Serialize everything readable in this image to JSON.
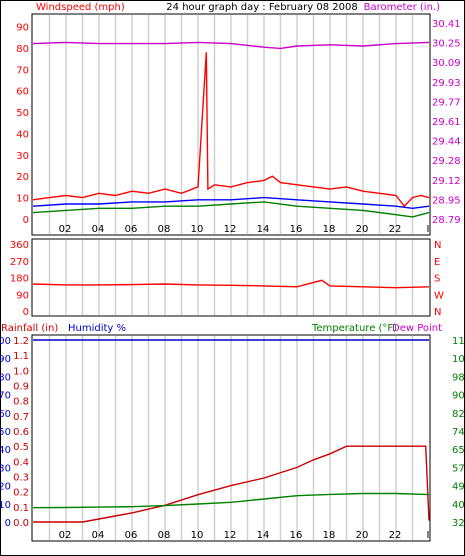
{
  "header": {
    "title": "24 hour graph day : February 08 2008",
    "left_label": "Windspeed (mph)",
    "right_label": "Barometer (in.)"
  },
  "colors": {
    "wind": "#ff0000",
    "avg_wind": "#0000ff",
    "gust_low": "#008000",
    "barometer": "#cc00cc",
    "grid": "#d0d0d0",
    "rain": "#cc0000",
    "humidity": "#0000cc",
    "temperature": "#008000"
  },
  "chart_data": [
    {
      "type": "line",
      "title": "24 hour graph day : February 08 2008",
      "ylabel": "Windspeed (mph)",
      "y2label": "Barometer (in.)",
      "x_ticks": [
        "02",
        "04",
        "06",
        "08",
        "10",
        "12",
        "14",
        "16",
        "18",
        "20",
        "22",
        "I"
      ],
      "y_ticks": [
        "0",
        "10",
        "20",
        "30",
        "40",
        "50",
        "60",
        "70",
        "80",
        "90"
      ],
      "y2_ticks": [
        "28.79",
        "28.95",
        "29.12",
        "29.28",
        "29.44",
        "29.61",
        "29.77",
        "29.93",
        "30.09",
        "30.25",
        "30.41"
      ],
      "ylim": [
        0,
        95
      ],
      "y2lim": [
        28.79,
        30.41
      ],
      "grid": true,
      "series": [
        {
          "key": "gust",
          "color": "#ff0000",
          "x": [
            0,
            1,
            2,
            3,
            4,
            5,
            6,
            7,
            8,
            9,
            10,
            10.5,
            10.6,
            11,
            12,
            13,
            14,
            14.5,
            15,
            16,
            17,
            18,
            19,
            20,
            21,
            22,
            22.5,
            23,
            23.5,
            24
          ],
          "y": [
            9,
            10,
            11,
            10,
            12,
            11,
            13,
            12,
            14,
            12,
            15,
            78,
            14,
            16,
            15,
            17,
            18,
            20,
            17,
            16,
            15,
            14,
            15,
            13,
            12,
            11,
            6,
            10,
            11,
            10
          ]
        },
        {
          "key": "average",
          "color": "#0000ff",
          "x": [
            0,
            2,
            4,
            6,
            8,
            10,
            12,
            14,
            16,
            18,
            20,
            22,
            23,
            24
          ],
          "y": [
            6,
            7,
            7,
            8,
            8,
            9,
            9,
            10,
            9,
            8,
            7,
            6,
            5,
            6
          ]
        },
        {
          "key": "low",
          "color": "#008000",
          "x": [
            0,
            2,
            4,
            6,
            8,
            10,
            12,
            14,
            16,
            18,
            20,
            22,
            23,
            24
          ],
          "y": [
            3,
            4,
            5,
            5,
            6,
            6,
            7,
            8,
            6,
            5,
            4,
            2,
            1,
            3
          ]
        },
        {
          "key": "barometer",
          "color": "#cc00cc",
          "axis": "right",
          "x": [
            0,
            2,
            4,
            6,
            8,
            10,
            12,
            14,
            15,
            16,
            18,
            20,
            22,
            24
          ],
          "y": [
            30.24,
            30.25,
            30.24,
            30.24,
            30.24,
            30.25,
            30.24,
            30.21,
            30.2,
            30.22,
            30.23,
            30.22,
            30.24,
            30.25
          ]
        }
      ]
    },
    {
      "type": "line",
      "y_ticks": [
        "0",
        "90",
        "180",
        "270",
        "360"
      ],
      "y2_ticks": [
        "N",
        "W",
        "S",
        "E",
        "N"
      ],
      "ylim": [
        0,
        360
      ],
      "grid": true,
      "series": [
        {
          "key": "direction",
          "color": "#ff0000",
          "x": [
            0,
            2,
            4,
            6,
            8,
            10,
            12,
            14,
            16,
            17.5,
            18,
            20,
            22,
            24
          ],
          "y": [
            145,
            140,
            140,
            142,
            145,
            140,
            138,
            135,
            130,
            165,
            135,
            130,
            125,
            130
          ]
        }
      ]
    },
    {
      "type": "line",
      "left_label": "Rainfall (in)",
      "humidity_label": "Humidity %",
      "right_label": "Temperature (°F)",
      "dew_label": "Dew Point",
      "y_ticks": [
        "0.0",
        "0.1",
        "0.2",
        "0.3",
        "0.4",
        "0.5",
        "0.6",
        "0.7",
        "0.8",
        "0.9",
        "1.0",
        "1.1",
        "1.2"
      ],
      "humidity_ticks": [
        "0",
        "10",
        "20",
        "30",
        "40",
        "50",
        "60",
        "70",
        "80",
        "90",
        "100"
      ],
      "y2_ticks": [
        "32",
        "40",
        "49",
        "57",
        "65",
        "74",
        "82",
        "90",
        "98",
        "107",
        "115"
      ],
      "ylim": [
        0,
        1.2
      ],
      "humidity_lim": [
        0,
        100
      ],
      "y2lim": [
        32,
        115
      ],
      "grid": true,
      "series": [
        {
          "key": "rain",
          "color": "#cc0000",
          "x": [
            0,
            3,
            4,
            6,
            8,
            10,
            12,
            14,
            16,
            17,
            18,
            19,
            20,
            22,
            23.8,
            24
          ],
          "y": [
            0,
            0,
            0.02,
            0.06,
            0.11,
            0.18,
            0.24,
            0.29,
            0.36,
            0.41,
            0.45,
            0.5,
            0.5,
            0.5,
            0.5,
            0.01
          ]
        },
        {
          "key": "humidity",
          "color": "#0000cc",
          "axis": "humidity",
          "x": [
            0,
            24
          ],
          "y": [
            100,
            100
          ]
        },
        {
          "key": "temperature",
          "color": "#008000",
          "axis": "right",
          "x": [
            0,
            2,
            4,
            6,
            8,
            10,
            12,
            14,
            16,
            18,
            20,
            22,
            24
          ],
          "y": [
            38.5,
            38.6,
            38.8,
            39.0,
            39.5,
            40.2,
            41.0,
            42.5,
            44.0,
            44.6,
            45.0,
            45.0,
            44.5
          ]
        }
      ]
    }
  ]
}
